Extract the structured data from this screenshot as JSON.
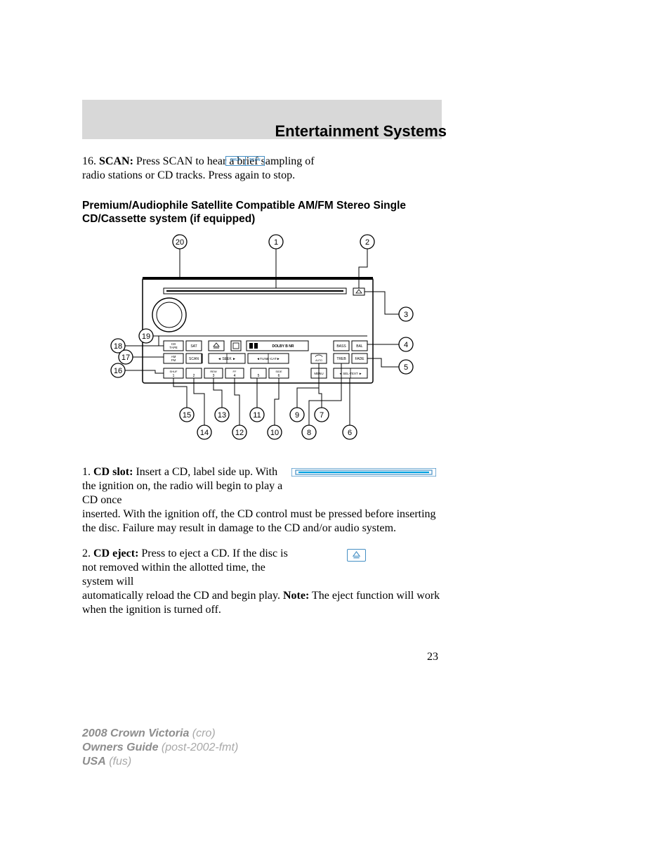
{
  "header": {
    "title": "Entertainment Systems"
  },
  "item16": {
    "num": "16.",
    "bold": "SCAN:",
    "text": " Press SCAN to hear a brief sampling of radio stations or CD tracks. Press again to stop."
  },
  "scan_box": {
    "left": "SHUF",
    "right": "SCAN",
    "border_color": "#458fc4"
  },
  "section_title": "Premium/Audiophile Satellite Compatible AM/FM Stereo Single CD/Cassette system (if equipped)",
  "diagram": {
    "callouts": [
      "20",
      "1",
      "2",
      "3",
      "19",
      "4",
      "18",
      "17",
      "5",
      "16",
      "15",
      "13",
      "11",
      "9",
      "7",
      "14",
      "12",
      "10",
      "8",
      "6"
    ],
    "row2_labels": [
      "CD TAPE",
      "SAT",
      "BASS",
      "BAL"
    ],
    "row3_labels": [
      "AM FM",
      "SCAN",
      "SEEK",
      "TUNE-CAT",
      "TREB",
      "FADE"
    ],
    "row4_labels": [
      "SHUF 1",
      "2",
      "REW 3",
      "FF 4",
      "5",
      "SIDE 6",
      "MENU",
      "SEL-TEXT"
    ],
    "dolby": "DOLBY B NR",
    "line_color": "#000000",
    "circle_radius": 10,
    "stroke_width": 1.2,
    "font_family": "Arial"
  },
  "item1": {
    "num": "1.",
    "bold": "CD slot:",
    "text_a": " Insert a CD, label side up. With the ignition on, the radio will begin to play a CD once ",
    "text_b": "inserted. With the ignition off, the CD control must be pressed before inserting the disc. Failure may result in damage to the CD and/or audio system."
  },
  "cd_slot_graphic": {
    "outer_color": "#458fc4",
    "inner_color": "#00a0e0"
  },
  "item2": {
    "num": "2.",
    "bold": "CD eject:",
    "text_a": " Press to eject a CD. If the disc is not removed within the allotted time, the system will ",
    "text_b": "automatically reload the CD and begin play. ",
    "note_bold": "Note:",
    "text_c": " The eject function will work when the ignition is turned off."
  },
  "eject_button": {
    "border_color": "#458fc4",
    "icon_color": "#458fc4"
  },
  "page_number": "23",
  "footer": {
    "line1a": "2008 Crown Victoria",
    "line1b": " (cro)",
    "line2a": "Owners Guide",
    "line2b": " (post-2002-fmt)",
    "line3a": "USA",
    "line3b": " (fus)"
  }
}
